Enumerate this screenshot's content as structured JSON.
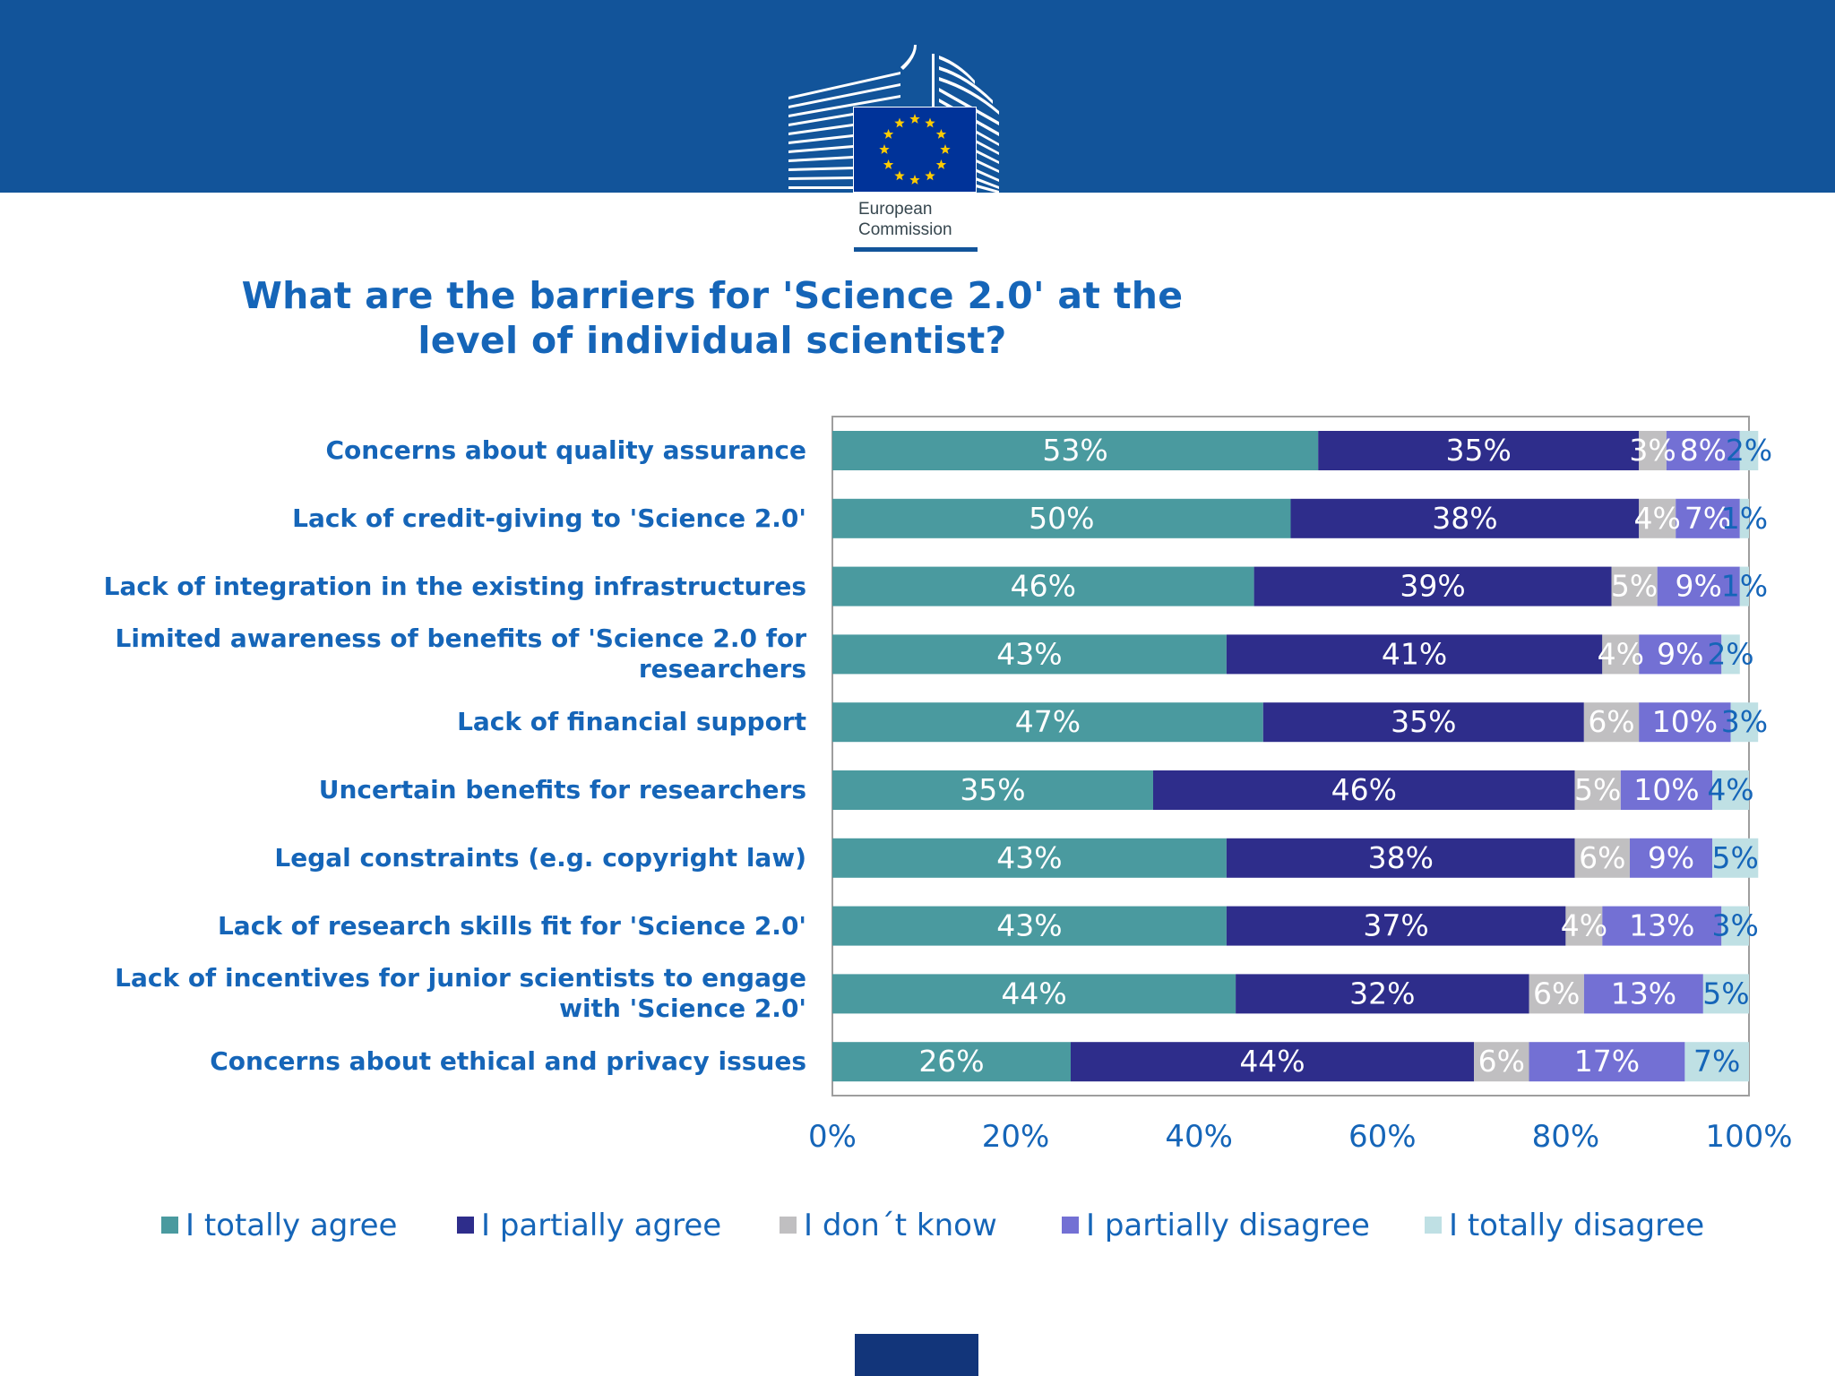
{
  "header": {
    "logo_line1": "European",
    "logo_line2": "Commission",
    "colors": {
      "band": "#12549a",
      "flag": "#003399",
      "stars": "#ffcc00"
    }
  },
  "chart_data": {
    "type": "bar",
    "orientation": "horizontal",
    "stacked": true,
    "title": "What are the barriers for 'Science 2.0' at the level of individual scientist?",
    "categories": [
      "Concerns about quality assurance",
      "Lack of credit-giving to 'Science 2.0'",
      "Lack of integration in the existing infrastructures",
      "Limited awareness of benefits of 'Science 2.0 for researchers",
      "Lack of financial support",
      "Uncertain benefits for researchers",
      "Legal constraints (e.g. copyright law)",
      "Lack of research skills fit for 'Science 2.0'",
      "Lack of incentives for junior scientists to engage with 'Science 2.0'",
      "Concerns about ethical and privacy issues"
    ],
    "series": [
      {
        "name": "I totally agree",
        "color": "#4a9a9f",
        "label_color": "#ffffff",
        "values": [
          53,
          50,
          46,
          43,
          47,
          35,
          43,
          43,
          44,
          26
        ]
      },
      {
        "name": "I partially agree",
        "color": "#2e2d8b",
        "label_color": "#ffffff",
        "values": [
          35,
          38,
          39,
          41,
          35,
          46,
          38,
          37,
          32,
          44
        ]
      },
      {
        "name": "I don´t know",
        "color": "#c0bfc1",
        "label_color": "#ffffff",
        "values": [
          3,
          4,
          5,
          4,
          6,
          5,
          6,
          4,
          6,
          6
        ]
      },
      {
        "name": "I partially disagree",
        "color": "#7370d4",
        "label_color": "#ffffff",
        "values": [
          8,
          7,
          9,
          9,
          10,
          10,
          9,
          13,
          13,
          17
        ]
      },
      {
        "name": "I totally disagree",
        "color": "#bfe0e4",
        "label_color": "#1565b8",
        "values": [
          2,
          1,
          1,
          2,
          3,
          4,
          5,
          3,
          5,
          7
        ]
      }
    ],
    "xlim": [
      0,
      100
    ],
    "xticks": [
      "0%",
      "20%",
      "40%",
      "60%",
      "80%",
      "100%"
    ],
    "value_suffix": "%",
    "legend_position": "bottom",
    "grid": false
  }
}
